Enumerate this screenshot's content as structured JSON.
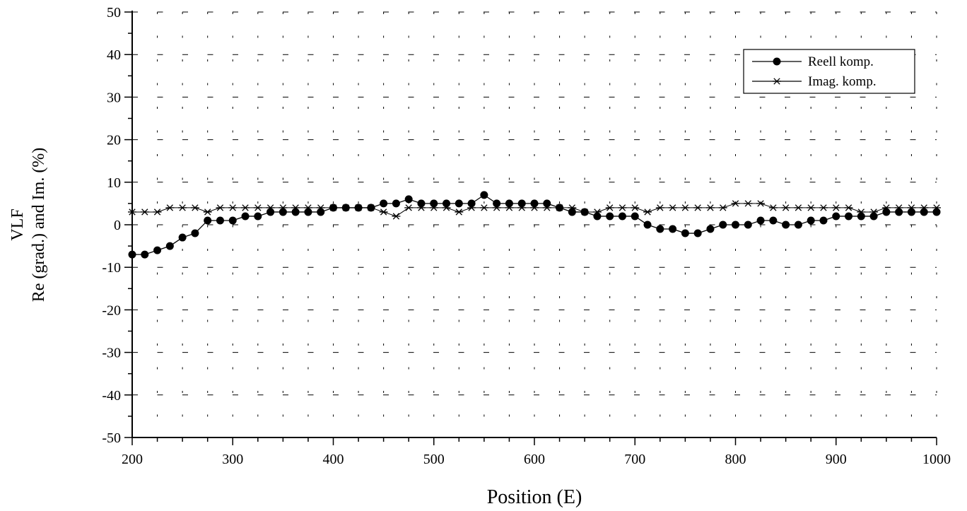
{
  "chart_data": {
    "type": "line",
    "title": "",
    "xlabel": "Position (E)",
    "ylabel": [
      "VLF",
      "Re (grad.) and Im. (%)"
    ],
    "xlim": [
      200,
      1000
    ],
    "ylim": [
      -50,
      50
    ],
    "xticks": [
      "200",
      "300",
      "400",
      "500",
      "600",
      "700",
      "800",
      "900",
      "1000"
    ],
    "yticks": [
      "-50",
      "-40",
      "-30",
      "-20",
      "-10",
      "0",
      "10",
      "20",
      "30",
      "40",
      "50"
    ],
    "grid": "dashed",
    "legend_position": "top-right",
    "x": [
      200,
      212.5,
      225,
      237.5,
      250,
      262.5,
      275,
      287.5,
      300,
      312.5,
      325,
      337.5,
      350,
      362.5,
      375,
      387.5,
      400,
      412.5,
      425,
      437.5,
      450,
      462.5,
      475,
      487.5,
      500,
      512.5,
      525,
      537.5,
      550,
      562.5,
      575,
      587.5,
      600,
      612.5,
      625,
      637.5,
      650,
      662.5,
      675,
      687.5,
      700,
      712.5,
      725,
      737.5,
      750,
      762.5,
      775,
      787.5,
      800,
      812.5,
      825,
      837.5,
      850,
      862.5,
      875,
      887.5,
      900,
      912.5,
      925,
      937.5,
      950,
      962.5,
      975,
      987.5,
      1000
    ],
    "series": [
      {
        "name": "Reell komp.",
        "marker": "circle",
        "values": [
          -7,
          -7,
          -6,
          -5,
          -3,
          -2,
          1,
          1,
          1,
          2,
          2,
          3,
          3,
          3,
          3,
          3,
          4,
          4,
          4,
          4,
          5,
          5,
          6,
          5,
          5,
          5,
          5,
          5,
          7,
          5,
          5,
          5,
          5,
          5,
          4,
          3,
          3,
          2,
          2,
          2,
          2,
          0,
          -1,
          -1,
          -2,
          -2,
          -1,
          0,
          0,
          0,
          1,
          1,
          0,
          0,
          1,
          1,
          2,
          2,
          2,
          2,
          3,
          3,
          3,
          3,
          3
        ]
      },
      {
        "name": "Imag. komp.",
        "marker": "star",
        "values": [
          3,
          3,
          3,
          4,
          4,
          4,
          3,
          4,
          4,
          4,
          4,
          4,
          4,
          4,
          4,
          4,
          4,
          4,
          4,
          4,
          3,
          2,
          4,
          4,
          4,
          4,
          3,
          4,
          4,
          4,
          4,
          4,
          4,
          4,
          4,
          4,
          3,
          3,
          4,
          4,
          4,
          3,
          4,
          4,
          4,
          4,
          4,
          4,
          5,
          5,
          5,
          4,
          4,
          4,
          4,
          4,
          4,
          4,
          3,
          3,
          4,
          4,
          4,
          4,
          4
        ]
      }
    ],
    "colors": {
      "line": "#000000",
      "grid": "#000000",
      "background": "#ffffff"
    }
  }
}
